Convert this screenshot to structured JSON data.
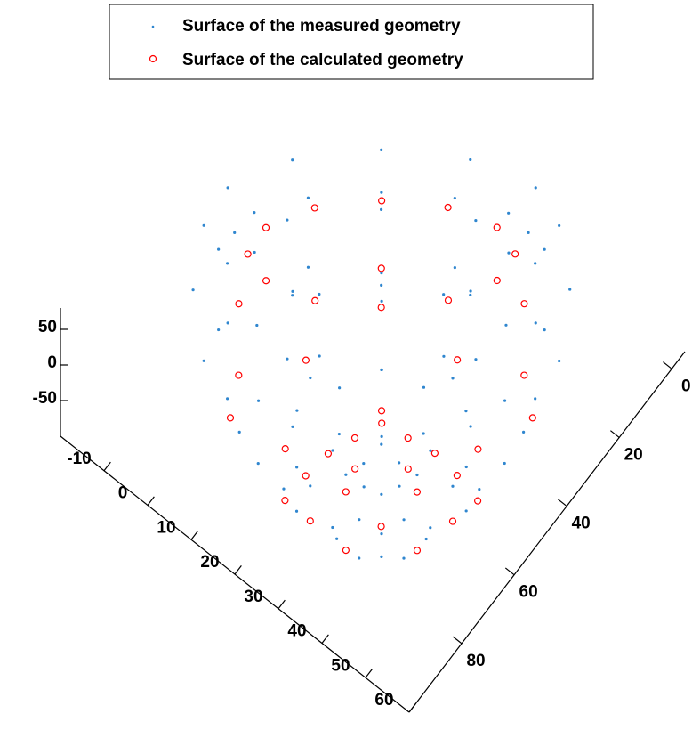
{
  "chart_data": {
    "type": "scatter3d",
    "legend": "north",
    "xlim": [
      -20,
      60
    ],
    "ylim": [
      -5,
      100
    ],
    "zlim": [
      -100,
      80
    ],
    "xticks": [
      -10,
      0,
      10,
      20,
      30,
      40,
      50,
      60
    ],
    "yticks": [
      0,
      20,
      40,
      60,
      80
    ],
    "zticks": [
      -50,
      0,
      50
    ],
    "series": [
      {
        "name": "Surface of the measured geometry",
        "color": "#2f86cf",
        "marker": "dot",
        "x": [
          66.4,
          67.1,
          60.9,
          49.3,
          35.5,
          23.1,
          15.6,
          14.9,
          21.1,
          32.7,
          46.5,
          58.9,
          67.9,
          68.7,
          62.1,
          49.8,
          35.1,
          22.1,
          14.1,
          13.3,
          19.9,
          32.2,
          46.9,
          59.9,
          66.4,
          67.1,
          60.9,
          49.3,
          35.5,
          23.1,
          15.6,
          14.9,
          21.1,
          32.7,
          46.5,
          58.9,
          61.3,
          62.0,
          57.1,
          47.8,
          36.7,
          26.8,
          20.7,
          20.0,
          24.9,
          34.2,
          45.3,
          55.2,
          55.0,
          55.5,
          52.2,
          45.9,
          38.2,
          31.3,
          27.0,
          26.5,
          29.8,
          36.1,
          43.8,
          50.7,
          47.4,
          46.3,
          39.9,
          34.6,
          35.7,
          42.1,
          41,
          62.0,
          61.4,
          55.3,
          45.4,
          34.3,
          25.0,
          20.0,
          20.6,
          26.7,
          36.6,
          47.7,
          57.0,
          58.8,
          53.3,
          35.5,
          23.2,
          28.7,
          46.5,
          53.1,
          49.5,
          37.5,
          28.9,
          32.5,
          44.5,
          46.1,
          44.8,
          39.8,
          35.9,
          37.2,
          42.2
        ],
        "y": [
          53.5,
          63.8,
          78.1,
          92.7,
          103.7,
          108.0,
          104.5,
          94.2,
          79.9,
          65.3,
          54.3,
          50.0,
          51.9,
          62.9,
          78.1,
          93.5,
          105.1,
          109.7,
          106.1,
          95.1,
          79.9,
          64.5,
          52.9,
          48.3,
          53.5,
          63.8,
          78.1,
          92.7,
          103.7,
          108.0,
          104.5,
          94.2,
          79.9,
          65.3,
          54.3,
          50.0,
          58.6,
          67.0,
          78.6,
          90.3,
          99.0,
          102.4,
          99.4,
          91.0,
          79.4,
          67.7,
          59.0,
          55.6,
          65.0,
          70.8,
          79.0,
          87.1,
          93.0,
          95.2,
          93.0,
          87.2,
          79.0,
          70.9,
          65.0,
          62.8,
          72.6,
          79.3,
          85.7,
          85.4,
          78.7,
          72.3,
          79,
          57.9,
          64.4,
          74.8,
          86.3,
          95.8,
          100.8,
          100.1,
          93.6,
          83.2,
          71.7,
          62.2,
          57.2,
          61.1,
          75.7,
          93.5,
          96.9,
          82.3,
          64.5,
          66.9,
          77.1,
          89.3,
          91.1,
          80.9,
          68.7,
          73.9,
          78.5,
          83.7,
          84.1,
          79.5,
          74.3
        ],
        "z": [
          390,
          390,
          390,
          390,
          390,
          390,
          390,
          390,
          390,
          390,
          390,
          390,
          300,
          300,
          300,
          300,
          300,
          300,
          300,
          300,
          300,
          300,
          300,
          300,
          200,
          200,
          200,
          200,
          200,
          200,
          200,
          200,
          200,
          200,
          200,
          200,
          100,
          100,
          100,
          100,
          100,
          100,
          100,
          100,
          100,
          100,
          100,
          100,
          20,
          20,
          20,
          20,
          20,
          20,
          20,
          20,
          20,
          20,
          20,
          20,
          -50,
          -50,
          -50,
          -50,
          -50,
          -50,
          -75,
          380,
          380,
          380,
          380,
          380,
          380,
          380,
          380,
          380,
          380,
          380,
          380,
          250,
          250,
          250,
          250,
          250,
          250,
          130,
          130,
          130,
          130,
          130,
          130,
          40,
          40,
          40,
          40,
          40,
          40
        ]
      },
      {
        "name": "Surface of the calculated geometry",
        "color": "#ff0000",
        "marker": "circle",
        "x": [
          60.1,
          60.4,
          55.6,
          46.8,
          36.6,
          27.4,
          21.9,
          21.6,
          26.4,
          35.2,
          45.4,
          54.6,
          65.3,
          48.8,
          24.5,
          16.7,
          33.2,
          57.5,
          62.6,
          58.1,
          36.5,
          19.4,
          23.9,
          45.5,
          57.6,
          46.6,
          30.0,
          24.4,
          35.4,
          52.0,
          51.2,
          49.3,
          39.1,
          30.8,
          32.7,
          42.9,
          48.6,
          46.5,
          38.9,
          33.4,
          35.5,
          43.1
        ],
        "y": [
          59.8,
          67.2,
          77.8,
          88.7,
          97.0,
          100.4,
          98.2,
          90.8,
          80.2,
          69.3,
          61.0,
          57.6,
          65.0,
          91.9,
          106.0,
          93.0,
          66.1,
          52.0,
          57.3,
          78.6,
          100.4,
          100.7,
          79.4,
          57.6,
          69.9,
          88.4,
          97.5,
          88.1,
          69.6,
          60.5,
          68.8,
          79.2,
          89.4,
          89.2,
          78.8,
          68.6,
          71.3,
          78.0,
          85.6,
          86.7,
          80.0,
          72.4
        ],
        "z": [
          350,
          350,
          350,
          350,
          350,
          350,
          350,
          350,
          350,
          350,
          350,
          350,
          230,
          230,
          230,
          230,
          230,
          230,
          120,
          120,
          120,
          120,
          120,
          120,
          40,
          40,
          40,
          40,
          40,
          40,
          -25,
          -25,
          -25,
          -25,
          -25,
          -25,
          70,
          70,
          70,
          70,
          70,
          70
        ]
      }
    ]
  }
}
